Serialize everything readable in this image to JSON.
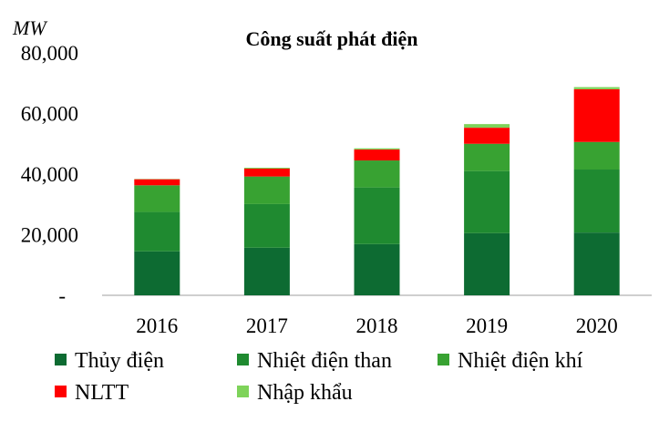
{
  "chart_data": {
    "type": "bar",
    "stacked": true,
    "title": "Công suất phát điện",
    "ylabel": "MW",
    "xlabel": "",
    "ylim": [
      0,
      80000
    ],
    "y_ticks": [
      "-",
      "20,000",
      "40,000",
      "60,000",
      "80,000"
    ],
    "grid": false,
    "legend_position": "bottom",
    "categories": [
      "2016",
      "2017",
      "2018",
      "2019",
      "2020"
    ],
    "series": [
      {
        "name": "Thủy điện",
        "color": "#0d6b32",
        "values": [
          14500,
          15700,
          16900,
          20500,
          20700
        ]
      },
      {
        "name": "Nhiệt điện than",
        "color": "#1f8a30",
        "values": [
          13000,
          14400,
          18700,
          20500,
          20800
        ]
      },
      {
        "name": "Nhiệt điện khí",
        "color": "#38a232",
        "values": [
          8800,
          9100,
          8900,
          9000,
          9100
        ]
      },
      {
        "name": "NLTT",
        "color": "#ff0000",
        "values": [
          2000,
          2600,
          3600,
          5300,
          17400
        ]
      },
      {
        "name": "Nhập khẩu",
        "color": "#7ed35a",
        "values": [
          100,
          300,
          400,
          1200,
          700
        ]
      }
    ]
  }
}
